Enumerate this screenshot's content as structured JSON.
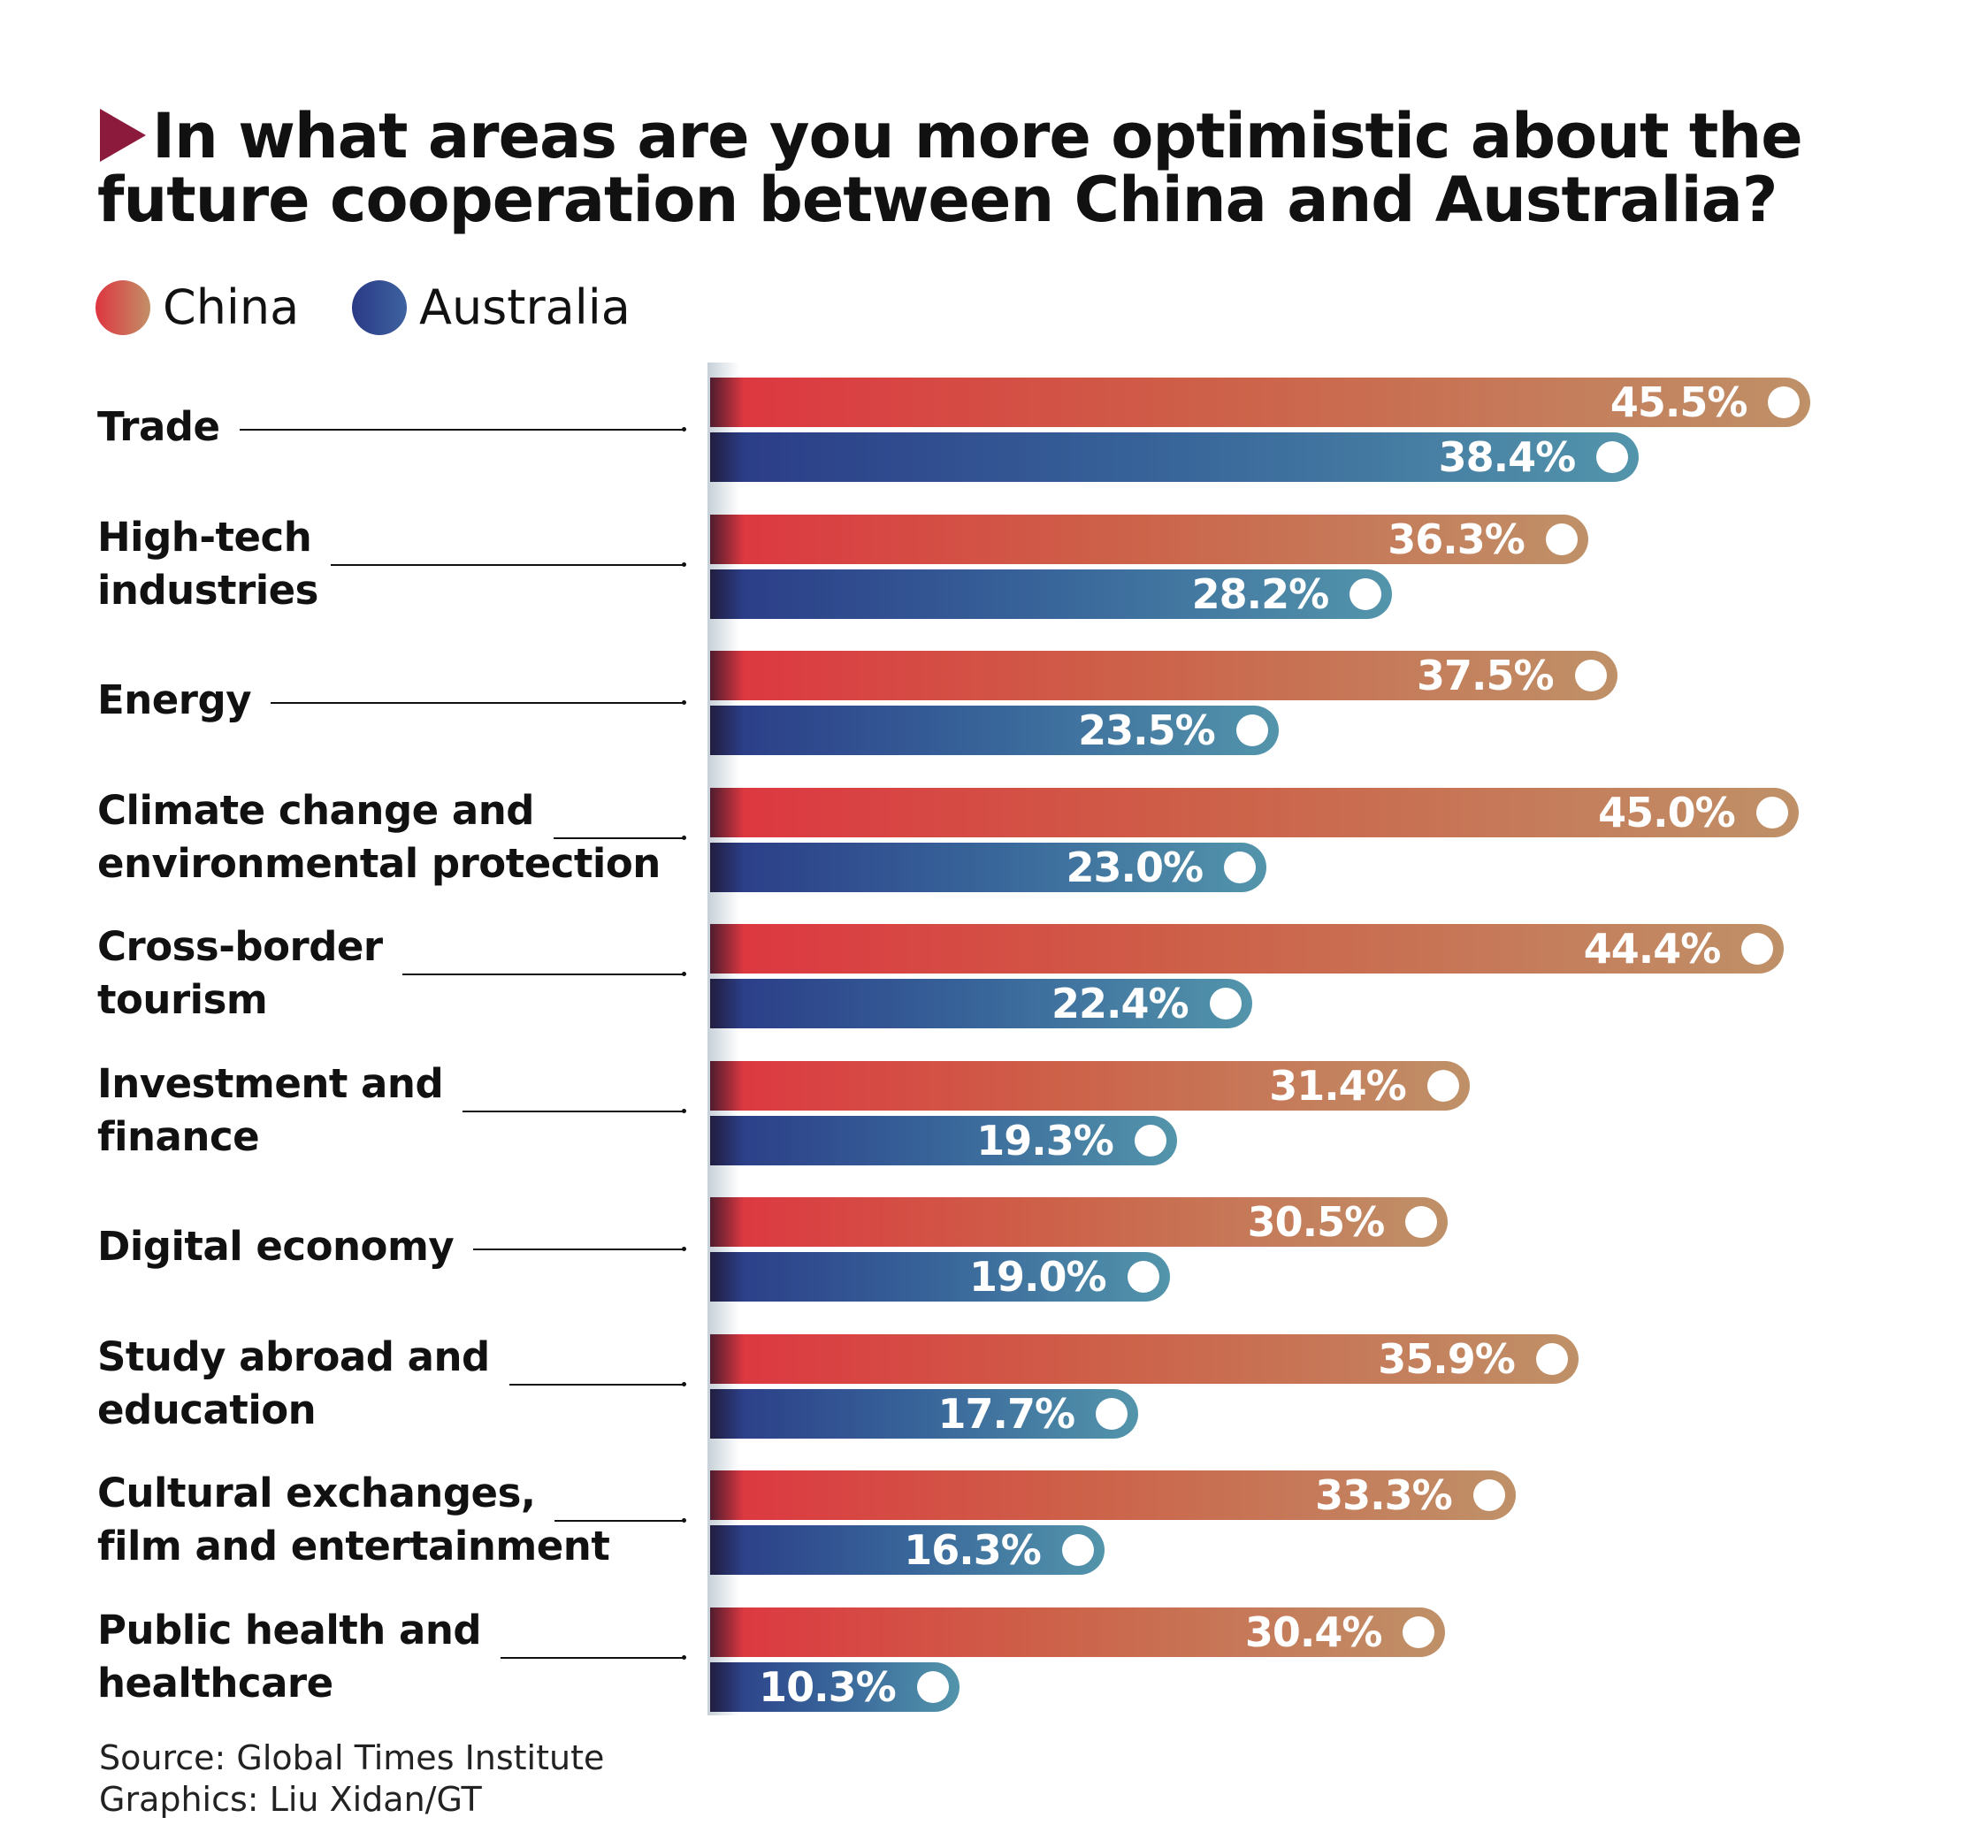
{
  "chart_data": {
    "type": "bar",
    "orientation": "horizontal",
    "title": "In what areas are you more optimistic about the future cooperation between China and Australia?",
    "categories": [
      "Trade",
      "High-tech\nindustries",
      "Energy",
      "Climate change and\nenvironmental protection",
      "Cross-border\ntourism",
      "Investment and\nfinance",
      "Digital economy",
      "Study abroad and\neducation",
      "Cultural exchanges,\nfilm and entertainment",
      "Public health and\nhealthcare"
    ],
    "series": [
      {
        "name": "China",
        "values": [
          45.5,
          36.3,
          37.5,
          45.0,
          44.4,
          31.4,
          30.5,
          35.9,
          33.3,
          30.4
        ],
        "color": "#d9473f"
      },
      {
        "name": "Australia",
        "values": [
          38.4,
          28.2,
          23.5,
          23.0,
          22.4,
          19.3,
          19.0,
          17.7,
          16.3,
          10.3
        ],
        "color": "#2f4f8f"
      }
    ],
    "value_suffix": "%",
    "legend": "top-left",
    "grid": false
  },
  "legend": {
    "china": "China",
    "australia": "Australia"
  },
  "footer": {
    "source": "Source: Global Times Institute",
    "graphics": "Graphics: Liu Xidan/GT"
  }
}
